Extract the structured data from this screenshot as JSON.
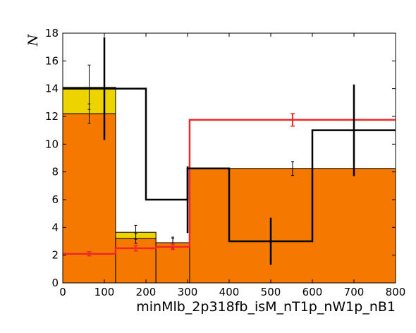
{
  "chart_data": {
    "type": "bar",
    "title": "",
    "xlabel": "minMlb_2p318fb_isM_nT1p_nW1p_nB1",
    "ylabel": "N",
    "xlim": [
      0,
      800
    ],
    "ylim": [
      0,
      18
    ],
    "x_ticks": [
      "0",
      "100",
      "200",
      "300",
      "400",
      "500",
      "600",
      "700",
      "800"
    ],
    "y_ticks": [
      "0",
      "2",
      "4",
      "6",
      "8",
      "10",
      "12",
      "14",
      "16",
      "18"
    ],
    "grid": false,
    "legend": "none",
    "stacked_background": {
      "bin_edges": [
        0,
        127,
        224,
        305,
        800
      ],
      "series": [
        {
          "values": [
            12.2,
            3.2,
            2.9,
            8.25
          ],
          "color": "#f57900"
        },
        {
          "values": [
            1.9,
            0.45,
            0.0,
            0.0
          ],
          "color": "#edd400"
        }
      ],
      "errors": {
        "x": [
          63.5,
          175.5,
          264.5,
          552.5
        ],
        "y_bottom": [
          12.2,
          3.2,
          2.9,
          8.25
        ],
        "y_top": [
          14.1,
          3.65,
          2.9,
          8.25
        ],
        "err_bottom": [
          0.7,
          0.35,
          0.3,
          0.5
        ],
        "err_top": [
          1.6,
          0.5,
          0.4,
          0.5
        ]
      }
    },
    "red_line": {
      "color": "#ef2929",
      "bin_edges": [
        0,
        127,
        224,
        305,
        800
      ],
      "values": [
        2.1,
        2.5,
        2.6,
        11.75
      ],
      "err_x": [
        63.5,
        175.5,
        264.5,
        552.5
      ],
      "err": [
        0.15,
        0.2,
        0.2,
        0.45
      ]
    },
    "black_line": {
      "color": "#000000",
      "bin_edges": [
        0,
        200,
        300,
        400,
        600,
        800
      ],
      "values": [
        14.0,
        6.0,
        8.25,
        3.0,
        11.0
      ],
      "err_x": [
        100,
        300,
        500,
        700
      ],
      "err_low": [
        10.3,
        3.6,
        1.3,
        7.7
      ],
      "err_high": [
        17.7,
        8.4,
        4.7,
        14.3
      ]
    }
  }
}
